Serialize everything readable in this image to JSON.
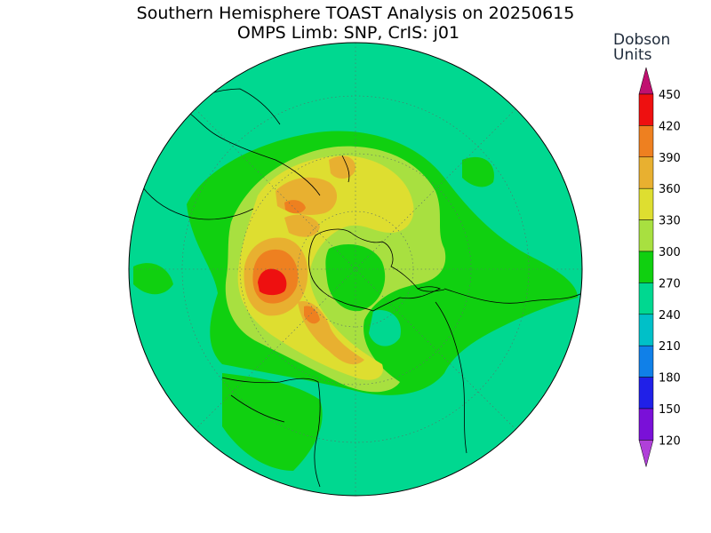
{
  "title": {
    "line1": "Southern Hemisphere TOAST Analysis on 20250615",
    "line2": "OMPS Limb: SNP, CrIS: j01"
  },
  "legend": {
    "units_line1": "Dobson",
    "units_line2": "Units",
    "levels": [
      {
        "label": "450",
        "color": "#c01070"
      },
      {
        "label": "420",
        "color": "#ee1010"
      },
      {
        "label": "390",
        "color": "#ee8020"
      },
      {
        "label": "360",
        "color": "#e8b030"
      },
      {
        "label": "330",
        "color": "#dede30"
      },
      {
        "label": "300",
        "color": "#a8e040"
      },
      {
        "label": "270",
        "color": "#10d010"
      },
      {
        "label": "240",
        "color": "#00d890"
      },
      {
        "label": "210",
        "color": "#00c0c8"
      },
      {
        "label": "180",
        "color": "#1080e8"
      },
      {
        "label": "150",
        "color": "#2020e8"
      },
      {
        "label": "120",
        "color": "#7a10d8"
      }
    ],
    "bottom_color": "#b040d8"
  },
  "map": {
    "projection": "south-polar-stereographic",
    "background_color": "#00d890",
    "gridlines": "dotted"
  }
}
